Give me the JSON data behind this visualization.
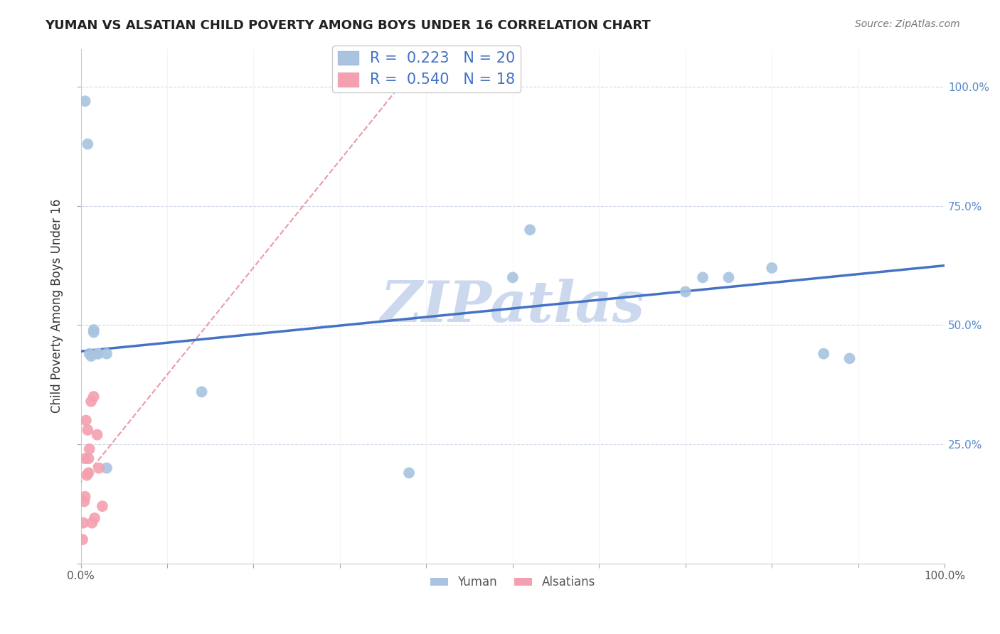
{
  "title": "YUMAN VS ALSATIAN CHILD POVERTY AMONG BOYS UNDER 16 CORRELATION CHART",
  "source": "Source: ZipAtlas.com",
  "xlabel": "",
  "ylabel": "Child Poverty Among Boys Under 16",
  "yuman_R": 0.223,
  "yuman_N": 20,
  "alsatian_R": 0.54,
  "alsatian_N": 18,
  "yuman_color": "#a8c4e0",
  "alsatian_color": "#f4a0b0",
  "yuman_line_color": "#4472c4",
  "alsatian_line_color": "#e07080",
  "background_color": "#ffffff",
  "grid_color": "#d0d8e8",
  "watermark": "ZIPatlas",
  "watermark_color": "#ccd8ee",
  "yuman_x": [
    0.005,
    0.008,
    0.01,
    0.012,
    0.015,
    0.015,
    0.02,
    0.02,
    0.03,
    0.03,
    0.14,
    0.38,
    0.5,
    0.52,
    0.7,
    0.72,
    0.75,
    0.8,
    0.86,
    0.89
  ],
  "yuman_y": [
    0.97,
    0.88,
    0.44,
    0.435,
    0.485,
    0.49,
    0.44,
    0.44,
    0.2,
    0.44,
    0.36,
    0.19,
    0.6,
    0.7,
    0.57,
    0.6,
    0.6,
    0.62,
    0.44,
    0.43
  ],
  "alsatian_x": [
    0.002,
    0.003,
    0.004,
    0.005,
    0.005,
    0.006,
    0.007,
    0.008,
    0.009,
    0.009,
    0.01,
    0.012,
    0.013,
    0.015,
    0.016,
    0.019,
    0.021,
    0.025
  ],
  "alsatian_y": [
    0.05,
    0.085,
    0.13,
    0.14,
    0.22,
    0.3,
    0.185,
    0.28,
    0.19,
    0.22,
    0.24,
    0.34,
    0.085,
    0.35,
    0.095,
    0.27,
    0.2,
    0.12
  ],
  "yuman_line_start_y": 0.445,
  "yuman_line_end_y": 0.625,
  "alsatian_line_x0": 0.0,
  "alsatian_line_y0": 0.05,
  "alsatian_line_x1": 0.025,
  "alsatian_line_y1": 0.36,
  "xlim": [
    0.0,
    1.0
  ],
  "ylim": [
    0.0,
    1.08
  ],
  "marker_size": 130
}
